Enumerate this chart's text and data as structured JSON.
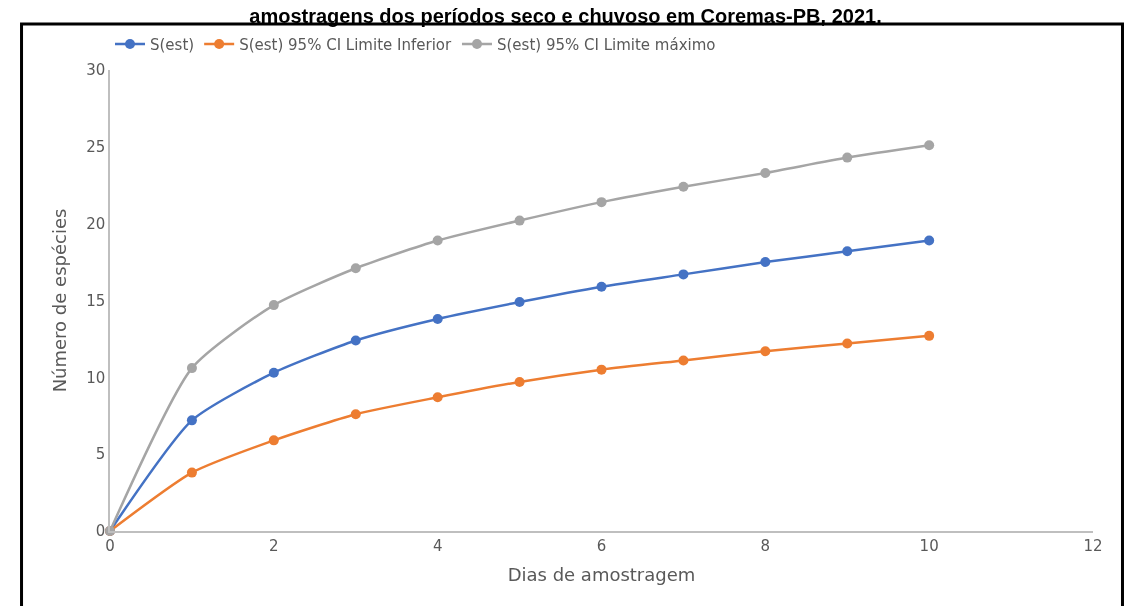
{
  "chart_data": {
    "type": "line",
    "title": "amostragens dos períodos seco e chuvoso em Coremas-PB, 2021.",
    "xlabel": "Dias de amostragem",
    "ylabel": "Número de espécies",
    "x": [
      0,
      1,
      2,
      3,
      4,
      5,
      6,
      7,
      8,
      9,
      10
    ],
    "series": [
      {
        "name": "S(est)",
        "color": "#4472c4",
        "values": [
          0,
          7.2,
          10.3,
          12.4,
          13.8,
          14.9,
          15.9,
          16.7,
          17.5,
          18.2,
          18.9
        ]
      },
      {
        "name": "S(est) 95% CI Limite Inferior",
        "color": "#ed7d31",
        "values": [
          0,
          3.8,
          5.9,
          7.6,
          8.7,
          9.7,
          10.5,
          11.1,
          11.7,
          12.2,
          12.7
        ]
      },
      {
        "name": "S(est) 95% CI Limite máximo",
        "color": "#a5a5a5",
        "values": [
          0,
          10.6,
          14.7,
          17.1,
          18.9,
          20.2,
          21.4,
          22.4,
          23.3,
          24.3,
          25.1
        ]
      }
    ],
    "xlim": [
      0,
      12
    ],
    "xticks": [
      0,
      2,
      4,
      6,
      8,
      10,
      12
    ],
    "ylim": [
      0,
      30
    ],
    "yticks": [
      0,
      5,
      10,
      15,
      20,
      25,
      30
    ],
    "legend": "top left",
    "marker": "circle",
    "line_style": "solid"
  }
}
